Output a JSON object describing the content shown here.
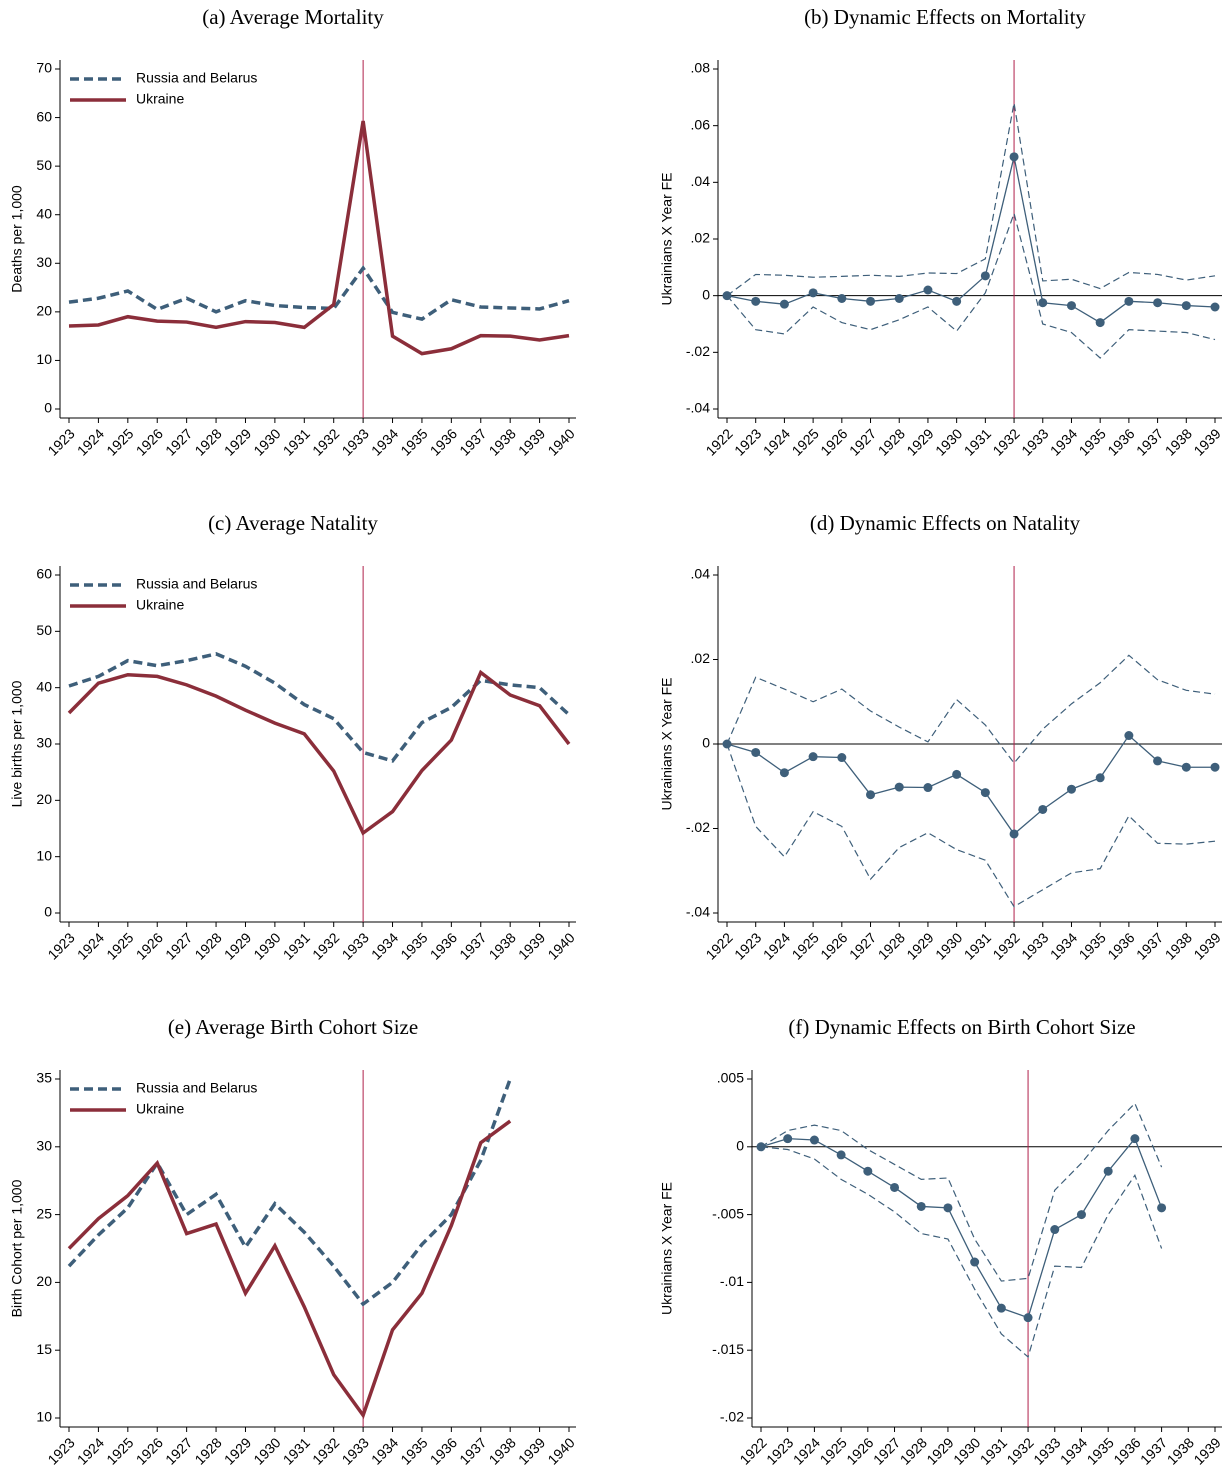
{
  "chart_data": [
    {
      "type": "line",
      "title": "(a) Average Mortality",
      "ylabel": "Deaths per 1,000",
      "x": [
        1923,
        1924,
        1925,
        1926,
        1927,
        1928,
        1929,
        1930,
        1931,
        1932,
        1933,
        1934,
        1935,
        1936,
        1937,
        1938,
        1939,
        1940
      ],
      "series": [
        {
          "name": "Russia and Belarus",
          "color": "#3e5f7a",
          "style": "dashed",
          "values": [
            22,
            22.8,
            24.3,
            20.5,
            22.8,
            20,
            22.3,
            21.3,
            20.9,
            20.7,
            29,
            19.9,
            18.5,
            22.5,
            21,
            20.8,
            20.6,
            22.3
          ]
        },
        {
          "name": "Ukraine",
          "color": "#8b2e3a",
          "style": "solid",
          "values": [
            17.1,
            17.3,
            19,
            18.1,
            17.9,
            16.8,
            18,
            17.8,
            16.8,
            21.5,
            59.3,
            15,
            11.4,
            12.4,
            15.1,
            15,
            14.2,
            15.1
          ]
        }
      ],
      "ylim": [
        0,
        70
      ],
      "yticks": [
        0,
        10,
        20,
        30,
        40,
        50,
        60,
        70
      ],
      "vline": 1933,
      "legend": "upper left"
    },
    {
      "type": "line",
      "title": "(b) Dynamic Effects on Mortality",
      "ylabel": "Ukrainians X Year FE",
      "x": [
        1922,
        1923,
        1924,
        1925,
        1926,
        1927,
        1928,
        1929,
        1930,
        1931,
        1932,
        1933,
        1934,
        1935,
        1936,
        1937,
        1938,
        1939
      ],
      "series": [
        {
          "color": "#3e5f7a",
          "style": "solid",
          "markers": true,
          "values": [
            0,
            -0.002,
            -0.003,
            0.001,
            -0.001,
            -0.002,
            -0.001,
            0.002,
            -0.002,
            0.007,
            0.049,
            -0.0025,
            -0.0035,
            -0.0095,
            -0.002,
            -0.0025,
            -0.0035,
            -0.004
          ]
        },
        {
          "color": "#3e5f7a",
          "style": "thin-dashed",
          "values": [
            0,
            0.0075,
            0.0072,
            0.0065,
            0.0068,
            0.0072,
            0.0068,
            0.008,
            0.0078,
            0.013,
            0.068,
            0.0052,
            0.0058,
            0.0025,
            0.0082,
            0.0075,
            0.0055,
            0.007
          ]
        },
        {
          "color": "#3e5f7a",
          "style": "thin-dashed",
          "values": [
            0,
            -0.012,
            -0.0135,
            -0.004,
            -0.0095,
            -0.012,
            -0.0085,
            -0.004,
            -0.0125,
            0.001,
            0.029,
            -0.01,
            -0.013,
            -0.022,
            -0.012,
            -0.0125,
            -0.013,
            -0.0155
          ]
        }
      ],
      "ylim": [
        -0.04,
        0.08
      ],
      "yticks": [
        {
          "value": -0.04,
          "label": "-.04"
        },
        {
          "value": -0.02,
          "label": "-.02"
        },
        0,
        {
          "value": 0.02,
          "label": ".02"
        },
        {
          "value": 0.04,
          "label": ".04"
        },
        {
          "value": 0.06,
          "label": ".06"
        },
        {
          "value": 0.08,
          "label": ".08"
        }
      ],
      "vline": 1932,
      "hline": 0
    },
    {
      "type": "line",
      "title": "(c) Average Natality",
      "ylabel": "Live births per 1,000",
      "x": [
        1923,
        1924,
        1925,
        1926,
        1927,
        1928,
        1929,
        1930,
        1931,
        1932,
        1933,
        1934,
        1935,
        1936,
        1937,
        1938,
        1939,
        1940
      ],
      "series": [
        {
          "name": "Russia and Belarus",
          "color": "#3e5f7a",
          "style": "dashed",
          "values": [
            40.3,
            42,
            44.8,
            43.9,
            44.8,
            46,
            43.8,
            40.8,
            37,
            34.5,
            28.5,
            27,
            33.8,
            36.5,
            41.3,
            40.5,
            40,
            35.2
          ]
        },
        {
          "name": "Ukraine",
          "color": "#8b2e3a",
          "style": "solid",
          "values": [
            35.5,
            40.8,
            42.3,
            42,
            40.5,
            38.5,
            36,
            33.7,
            31.8,
            25.2,
            14.2,
            18,
            25.3,
            30.7,
            42.7,
            38.7,
            36.8,
            30
          ]
        }
      ],
      "ylim": [
        0,
        60
      ],
      "yticks": [
        0,
        10,
        20,
        30,
        40,
        50,
        60
      ],
      "vline": 1933,
      "legend": "upper left"
    },
    {
      "type": "line",
      "title": "(d) Dynamic Effects on Natality",
      "ylabel": "Ukrainians X Year FE",
      "x": [
        1922,
        1923,
        1924,
        1925,
        1926,
        1927,
        1928,
        1929,
        1930,
        1931,
        1932,
        1933,
        1934,
        1935,
        1936,
        1937,
        1938,
        1939
      ],
      "series": [
        {
          "color": "#3e5f7a",
          "style": "solid",
          "markers": true,
          "values": [
            0,
            -0.002,
            -0.0068,
            -0.003,
            -0.0032,
            -0.012,
            -0.0102,
            -0.0103,
            -0.0072,
            -0.0115,
            -0.0213,
            -0.0155,
            -0.0107,
            -0.008,
            0.002,
            -0.004,
            -0.0055,
            -0.0055
          ]
        },
        {
          "color": "#3e5f7a",
          "style": "thin-dashed",
          "values": [
            0,
            0.0158,
            0.013,
            0.01,
            0.013,
            0.0078,
            0.004,
            0.0005,
            0.0105,
            0.0045,
            -0.0045,
            0.0035,
            0.0095,
            0.0145,
            0.021,
            0.0152,
            0.0127,
            0.0118
          ]
        },
        {
          "color": "#3e5f7a",
          "style": "thin-dashed",
          "values": [
            0,
            -0.0195,
            -0.0267,
            -0.016,
            -0.0195,
            -0.032,
            -0.0245,
            -0.021,
            -0.025,
            -0.0275,
            -0.0385,
            -0.0345,
            -0.0305,
            -0.0295,
            -0.017,
            -0.0235,
            -0.0237,
            -0.023
          ]
        }
      ],
      "ylim": [
        -0.04,
        0.04
      ],
      "yticks": [
        {
          "value": -0.04,
          "label": "-.04"
        },
        {
          "value": -0.02,
          "label": "-.02"
        },
        0,
        {
          "value": 0.02,
          "label": ".02"
        },
        {
          "value": 0.04,
          "label": ".04"
        }
      ],
      "vline": 1932,
      "hline": 0
    },
    {
      "type": "line",
      "title": "(e) Average Birth Cohort Size",
      "ylabel": "Birth Cohort per 1,000",
      "x": [
        1923,
        1924,
        1925,
        1926,
        1927,
        1928,
        1929,
        1930,
        1931,
        1932,
        1933,
        1934,
        1935,
        1936,
        1937,
        1938,
        1939,
        1940
      ],
      "series": [
        {
          "name": "Russia and Belarus",
          "color": "#3e5f7a",
          "style": "dashed",
          "values": [
            21.2,
            23.5,
            25.5,
            28.8,
            25,
            26.5,
            22.6,
            25.8,
            23.7,
            21.2,
            18.4,
            20,
            22.8,
            25,
            29,
            35,
            null,
            null
          ]
        },
        {
          "name": "Ukraine",
          "color": "#8b2e3a",
          "style": "solid",
          "values": [
            22.5,
            24.7,
            26.4,
            28.8,
            23.6,
            24.3,
            19.2,
            22.7,
            18.2,
            13.2,
            10.2,
            16.5,
            19.2,
            24.2,
            30.3,
            31.9,
            null,
            null
          ]
        }
      ],
      "ylim": [
        10,
        35
      ],
      "yticks": [
        10,
        15,
        20,
        25,
        30,
        35
      ],
      "vline": 1933,
      "legend": "upper left"
    },
    {
      "type": "line",
      "title": "(f) Dynamic Effects on Birth Cohort Size",
      "ylabel": "Ukrainians X Year FE",
      "x": [
        1922,
        1923,
        1924,
        1925,
        1926,
        1927,
        1928,
        1929,
        1930,
        1931,
        1932,
        1933,
        1934,
        1935,
        1936,
        1937,
        1938,
        1939
      ],
      "series": [
        {
          "color": "#3e5f7a",
          "style": "solid",
          "markers": true,
          "values": [
            0,
            0.0006,
            0.0005,
            -0.0006,
            -0.0018,
            -0.003,
            -0.0044,
            -0.0045,
            -0.0085,
            -0.0119,
            -0.0126,
            -0.0061,
            -0.005,
            -0.0018,
            0.0006,
            -0.0045,
            null,
            null
          ]
        },
        {
          "color": "#3e5f7a",
          "style": "thin-dashed",
          "values": [
            0,
            0.0012,
            0.0016,
            0.0012,
            -0.0002,
            -0.0013,
            -0.0024,
            -0.0023,
            -0.0068,
            -0.0099,
            -0.0097,
            -0.0032,
            -0.0012,
            0.0012,
            0.0032,
            -0.0015,
            null,
            null
          ]
        },
        {
          "color": "#3e5f7a",
          "style": "thin-dashed",
          "values": [
            0,
            -0.0002,
            -0.0009,
            -0.0024,
            -0.0035,
            -0.0048,
            -0.0064,
            -0.0068,
            -0.0105,
            -0.0138,
            -0.0155,
            -0.0088,
            -0.0089,
            -0.005,
            -0.0021,
            -0.0075,
            null,
            null
          ]
        }
      ],
      "ylim": [
        -0.02,
        0.005
      ],
      "yticks": [
        {
          "value": -0.02,
          "label": "-.02"
        },
        {
          "value": -0.015,
          "label": "-.015"
        },
        {
          "value": -0.01,
          "label": "-.01"
        },
        {
          "value": -0.005,
          "label": "-.005"
        },
        0,
        {
          "value": 0.005,
          "label": ".005"
        }
      ],
      "vline": 1932,
      "hline": 0
    }
  ]
}
